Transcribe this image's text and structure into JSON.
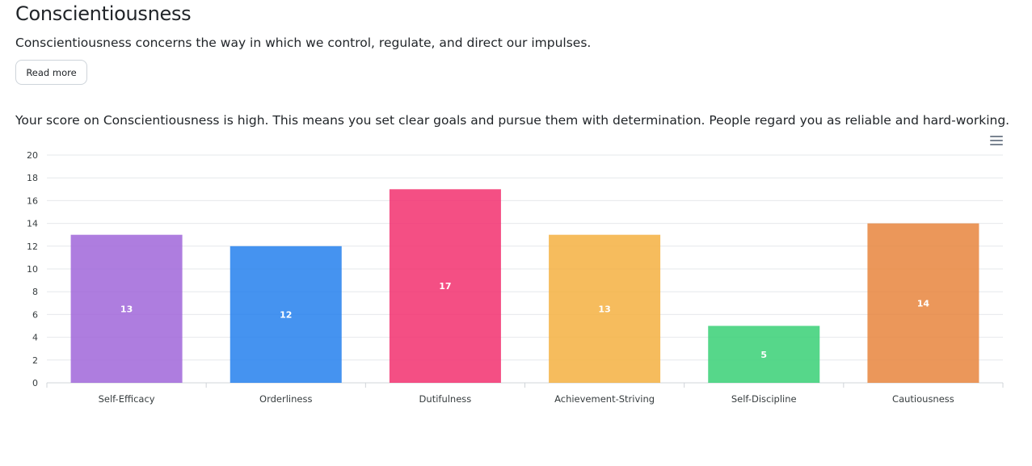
{
  "header": {
    "title": "Conscientiousness",
    "description": "Conscientiousness concerns the way in which we control, regulate, and direct our impulses.",
    "read_more_label": "Read more"
  },
  "score_text": "Your score on Conscientiousness is high. This means you set clear goals and pursue them with determination. People regard you as reliable and hard-working.",
  "chart_menu_icon": "hamburger-menu-icon",
  "chart_data": {
    "type": "bar",
    "categories": [
      "Self-Efficacy",
      "Orderliness",
      "Dutifulness",
      "Achievement-Striving",
      "Self-Discipline",
      "Cautiousness"
    ],
    "values": [
      13,
      12,
      17,
      13,
      5,
      14
    ],
    "colors": [
      "#a066d9",
      "#2480ed",
      "#f2306f",
      "#f5b041",
      "#38d075",
      "#e8853d"
    ],
    "ylim": [
      0,
      20
    ],
    "yticks": [
      0,
      2,
      4,
      6,
      8,
      10,
      12,
      14,
      16,
      18,
      20
    ],
    "grid": true,
    "data_labels": true,
    "title": "",
    "xlabel": "",
    "ylabel": ""
  }
}
